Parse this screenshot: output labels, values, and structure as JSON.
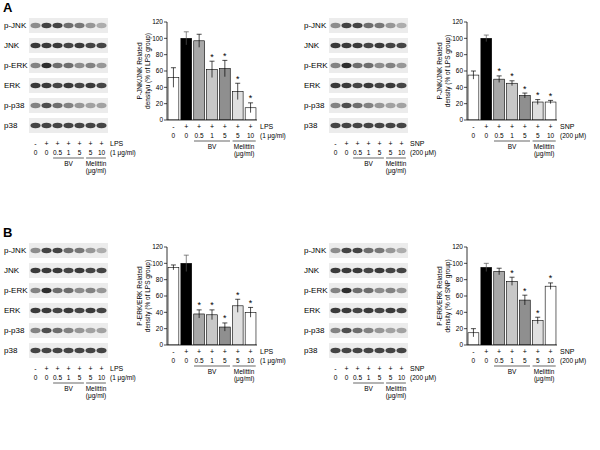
{
  "chart_data": [
    {
      "type": "bar",
      "y_label": "P-JNK/JNK Related densityu (% of LPS group)",
      "categories": [
        "0",
        "0",
        "0.5",
        "1",
        "5",
        "5",
        "10"
      ],
      "values": [
        52,
        100,
        97,
        62,
        63,
        35,
        15
      ],
      "errors": [
        12,
        8,
        8,
        10,
        10,
        10,
        6
      ],
      "colors": [
        "#ffffff",
        "#000000",
        "#a8a8a8",
        "#c8c8c8",
        "#8f8f8f",
        "#e0e0e0",
        "#ffffff"
      ],
      "ylim": [
        0,
        120
      ],
      "yticks": [
        0,
        20,
        40,
        60,
        80,
        100,
        120
      ],
      "annotations": {
        "treatment": [
          "-",
          "+",
          "+",
          "+",
          "+",
          "+",
          "+"
        ],
        "treatment_label": "LPS",
        "treatment_unit": "(1 μg/ml)",
        "groups": [
          {
            "label": "BV",
            "from": 2,
            "to": 4
          },
          {
            "label": "Melittin (μg/ml)",
            "from": 5,
            "to": 6
          }
        ],
        "significance": [
          null,
          null,
          null,
          "*",
          "*",
          "*",
          "*"
        ]
      }
    },
    {
      "type": "bar",
      "y_label": "P-JNK/JNK Related density (% of LPS group)",
      "categories": [
        "0",
        "0",
        "0.5",
        "1",
        "5",
        "5",
        "10"
      ],
      "values": [
        55,
        100,
        50,
        45,
        30,
        22,
        22
      ],
      "errors": [
        5,
        4,
        4,
        3,
        3,
        3,
        2
      ],
      "colors": [
        "#ffffff",
        "#000000",
        "#a8a8a8",
        "#c8c8c8",
        "#8f8f8f",
        "#e0e0e0",
        "#ffffff"
      ],
      "ylim": [
        0,
        120
      ],
      "yticks": [
        0,
        20,
        40,
        60,
        80,
        100,
        120
      ],
      "annotations": {
        "treatment": [
          "-",
          "+",
          "+",
          "+",
          "+",
          "+",
          "+"
        ],
        "treatment_label": "SNP",
        "treatment_unit": "(200 μM)",
        "groups": [
          {
            "label": "BV",
            "from": 2,
            "to": 4
          },
          {
            "label": "Melittin (μg/ml)",
            "from": 5,
            "to": 6
          }
        ],
        "significance": [
          null,
          null,
          "*",
          "*",
          "*",
          "*",
          "*"
        ]
      }
    },
    {
      "type": "bar",
      "y_label": "P-ERK/ERK Related density (% of LPS group)",
      "categories": [
        "0",
        "0",
        "0.5",
        "1",
        "5",
        "5",
        "10"
      ],
      "values": [
        95,
        100,
        38,
        37,
        22,
        48,
        40
      ],
      "errors": [
        3,
        10,
        5,
        6,
        5,
        8,
        6
      ],
      "colors": [
        "#ffffff",
        "#000000",
        "#a8a8a8",
        "#c8c8c8",
        "#8f8f8f",
        "#e0e0e0",
        "#ffffff"
      ],
      "ylim": [
        0,
        120
      ],
      "yticks": [
        0,
        20,
        40,
        60,
        80,
        100,
        120
      ],
      "annotations": {
        "treatment": [
          "-",
          "+",
          "+",
          "+",
          "+",
          "+",
          "+"
        ],
        "treatment_label": "LPS",
        "treatment_unit": "(1 μg/ml)",
        "groups": [
          {
            "label": "BV",
            "from": 2,
            "to": 4
          },
          {
            "label": "Melittin (μg/ml)",
            "from": 5,
            "to": 6
          }
        ],
        "significance": [
          null,
          null,
          "*",
          "*",
          "*",
          "*",
          "*"
        ]
      }
    },
    {
      "type": "bar",
      "y_label": "P-ERK/ERK Related density (% of SNP group)",
      "categories": [
        "0",
        "0",
        "0.5",
        "1",
        "5",
        "5",
        "10"
      ],
      "values": [
        15,
        95,
        90,
        78,
        55,
        30,
        72
      ],
      "errors": [
        5,
        5,
        4,
        5,
        6,
        4,
        4
      ],
      "colors": [
        "#ffffff",
        "#000000",
        "#a8a8a8",
        "#c8c8c8",
        "#8f8f8f",
        "#e0e0e0",
        "#ffffff"
      ],
      "ylim": [
        0,
        120
      ],
      "yticks": [
        0,
        20,
        40,
        60,
        80,
        100,
        120
      ],
      "annotations": {
        "treatment": [
          "-",
          "+",
          "+",
          "+",
          "+",
          "+",
          "+"
        ],
        "treatment_label": "SNP",
        "treatment_unit": "(200 μM)",
        "groups": [
          {
            "label": "BV",
            "from": 2,
            "to": 4
          },
          {
            "label": "Melittin (μg/ml)",
            "from": 5,
            "to": 6
          }
        ],
        "significance": [
          null,
          null,
          null,
          "*",
          "*",
          "*",
          "*"
        ]
      }
    }
  ],
  "figure": {
    "panel_labels": [
      "A",
      "B"
    ],
    "blots": [
      {
        "rows": [
          "p-JNK",
          "JNK",
          "p-ERK",
          "ERK",
          "p-p38",
          "p38"
        ],
        "treatment": [
          "-",
          "+",
          "+",
          "+",
          "+",
          "+",
          "+"
        ],
        "treatment_label": "LPS",
        "treatment_unit": "(1 μg/ml)",
        "doses": [
          "0",
          "0",
          "0.5",
          "1",
          "5",
          "5",
          "10"
        ],
        "groups": [
          {
            "label": "BV",
            "from": 2,
            "to": 4
          },
          {
            "label": "Melittin (μg/ml)",
            "from": 5,
            "to": 6
          }
        ]
      },
      {
        "rows": [
          "p-JNK",
          "JNK",
          "p-ERK",
          "ERK",
          "p-p38",
          "p38"
        ],
        "treatment": [
          "-",
          "+",
          "+",
          "+",
          "+",
          "+",
          "+"
        ],
        "treatment_label": "SNP",
        "treatment_unit": "(200 μM)",
        "doses": [
          "0",
          "0",
          "0.5",
          "1",
          "5",
          "5",
          "10"
        ],
        "groups": [
          {
            "label": "BV",
            "from": 2,
            "to": 4
          },
          {
            "label": "Melittin (μg/ml)",
            "from": 5,
            "to": 6
          }
        ]
      },
      {
        "rows": [
          "p-JNK",
          "JNK",
          "p-ERK",
          "ERK",
          "p-p38",
          "p38"
        ],
        "treatment": [
          "-",
          "+",
          "+",
          "+",
          "+",
          "+",
          "+"
        ],
        "treatment_label": "LPS",
        "treatment_unit": "(1 μg/ml)",
        "doses": [
          "0",
          "0",
          "0.5",
          "1",
          "5",
          "5",
          "10"
        ],
        "groups": [
          {
            "label": "BV",
            "from": 2,
            "to": 4
          },
          {
            "label": "Melittin (μg/ml)",
            "from": 5,
            "to": 6
          }
        ]
      },
      {
        "rows": [
          "p-JNK",
          "JNK",
          "p-ERK",
          "ERK",
          "p-p38",
          "p38"
        ],
        "treatment": [
          "-",
          "+",
          "+",
          "+",
          "+",
          "+",
          "+"
        ],
        "treatment_label": "SNP",
        "treatment_unit": "(200 μM)",
        "doses": [
          "0",
          "0",
          "0.5",
          "1",
          "5",
          "5",
          "10"
        ],
        "groups": [
          {
            "label": "BV",
            "from": 2,
            "to": 4
          },
          {
            "label": "Melittin (μg/ml)",
            "from": 5,
            "to": 6
          }
        ]
      }
    ]
  }
}
